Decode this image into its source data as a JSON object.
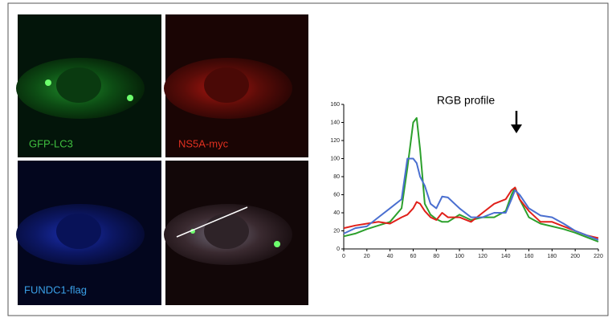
{
  "panels": {
    "top_left": "GFP-LC3",
    "top_right": "NS5A-myc",
    "bottom_left": "FUNDC1-flag"
  },
  "chart_data": {
    "type": "line",
    "title": "RGB profile",
    "x": [
      0,
      10,
      20,
      30,
      40,
      50,
      55,
      60,
      63,
      66,
      70,
      75,
      80,
      85,
      90,
      100,
      110,
      120,
      130,
      140,
      145,
      148,
      152,
      160,
      170,
      180,
      190,
      200,
      210,
      220
    ],
    "series": [
      {
        "color": "#2ca02c",
        "values": [
          14,
          17,
          22,
          26,
          30,
          45,
          90,
          140,
          145,
          110,
          50,
          38,
          33,
          30,
          30,
          38,
          32,
          35,
          35,
          42,
          60,
          68,
          55,
          35,
          28,
          25,
          22,
          18,
          13,
          8
        ]
      },
      {
        "color": "#e0201a",
        "values": [
          23,
          26,
          28,
          30,
          28,
          35,
          38,
          45,
          52,
          50,
          42,
          35,
          32,
          40,
          35,
          35,
          30,
          40,
          50,
          55,
          65,
          68,
          55,
          42,
          30,
          30,
          25,
          20,
          15,
          12
        ]
      },
      {
        "color": "#4a6fd0",
        "values": [
          17,
          23,
          25,
          35,
          45,
          55,
          100,
          100,
          95,
          80,
          70,
          50,
          45,
          58,
          57,
          45,
          35,
          35,
          40,
          40,
          55,
          65,
          60,
          45,
          37,
          35,
          28,
          20,
          15,
          10
        ]
      }
    ],
    "xlim": [
      0,
      220
    ],
    "xticks": [
      0,
      20,
      40,
      60,
      80,
      100,
      120,
      140,
      160,
      180,
      200,
      220
    ],
    "ylim": [
      0,
      160
    ],
    "yticks": [
      0,
      20,
      40,
      60,
      80,
      100,
      120,
      140,
      160
    ]
  }
}
